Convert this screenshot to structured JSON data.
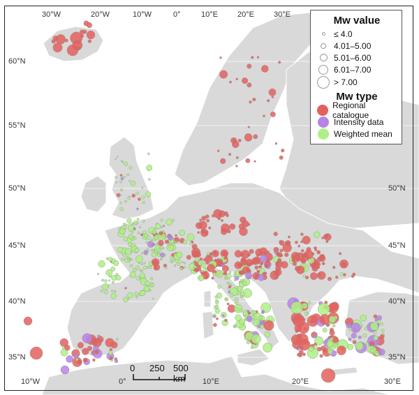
{
  "map": {
    "colors": {
      "land": "#d9d9d9",
      "sea": "#ffffff",
      "border": "#ffffff",
      "regional": "#e4605d",
      "intensity": "#b784e6",
      "weighted": "#aef084",
      "outline": "#8a8a8a"
    },
    "longitude_labels_top": [
      "30°W",
      "20°W",
      "10°W",
      "0°",
      "10°E",
      "20°E",
      "30°E"
    ],
    "longitude_labels_bottom": [
      "10°W",
      "0°",
      "10°E",
      "20°E",
      "30°E"
    ],
    "latitude_labels_left": [
      "60°N",
      "55°N",
      "50°N",
      "45°N",
      "40°N",
      "35°N"
    ],
    "latitude_labels_right": [
      "50°N",
      "45°N",
      "40°N",
      "35°N"
    ]
  },
  "legend": {
    "mw_value_title": "Mw value",
    "mw_value_items": [
      "≤ 4.0",
      "4.01–5.00",
      "5.01–6.00",
      "6.01–7.00",
      "> 7.00"
    ],
    "mw_type_title": "Mw type",
    "mw_type_items": [
      {
        "label": "Regional catalogue",
        "color": "#e4605d"
      },
      {
        "label": "Intensity data",
        "color": "#b784e6"
      },
      {
        "label": "Weighted mean",
        "color": "#aef084"
      }
    ]
  },
  "scale_bar": {
    "labels": [
      "0",
      "250",
      "500 km"
    ]
  }
}
